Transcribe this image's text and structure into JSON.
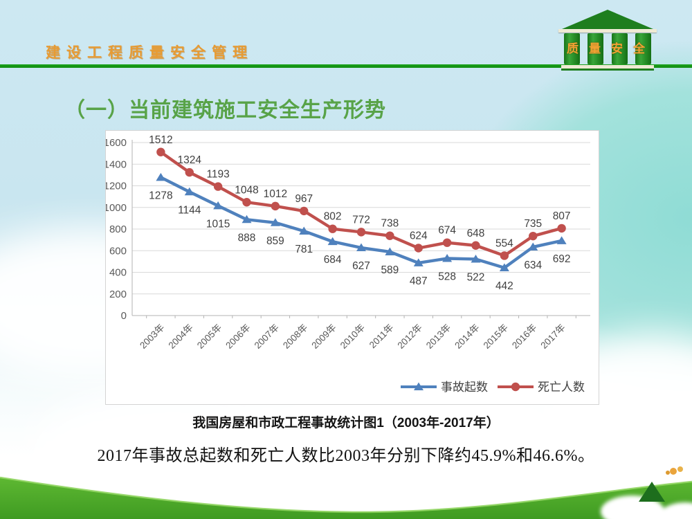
{
  "header": {
    "title": "建设工程质量安全管理",
    "logo_text": "质量安全"
  },
  "slide": {
    "title": "（一）当前建筑施工安全生产形势",
    "caption": "我国房屋和市政工程事故统计图1（2003年-2017年）",
    "summary": "2017年事故总起数和死亡人数比2003年分别下降约45.9%和46.6%。"
  },
  "colors": {
    "header_text": "#e79b33",
    "header_rule_green": "#12a012",
    "title_green": "#58a348",
    "accidents_blue": "#4f81bd",
    "deaths_red": "#c0504d",
    "logo_green": "#1e7e1e",
    "nav_triangle_green": "#1d6e1d"
  },
  "chart_data": {
    "type": "line",
    "title": "",
    "xlabel": "",
    "ylabel": "",
    "categories": [
      "2003年",
      "2004年",
      "2005年",
      "2006年",
      "2007年",
      "2008年",
      "2009年",
      "2010年",
      "2011年",
      "2012年",
      "2013年",
      "2014年",
      "2015年",
      "2016年",
      "2017年"
    ],
    "series": [
      {
        "key": "accidents",
        "name": "事故起数",
        "color": "#4f81bd",
        "marker": "triangle",
        "label_position": "below",
        "values": [
          1278,
          1144,
          1015,
          888,
          859,
          781,
          684,
          627,
          589,
          487,
          528,
          522,
          442,
          634,
          692
        ]
      },
      {
        "key": "deaths",
        "name": "死亡人数",
        "color": "#c0504d",
        "marker": "circle",
        "label_position": "above",
        "values": [
          1512,
          1324,
          1193,
          1048,
          1012,
          967,
          802,
          772,
          738,
          624,
          674,
          648,
          554,
          735,
          807
        ]
      }
    ],
    "ylim": [
      0,
      1600
    ],
    "ytick_step": 200,
    "grid": true,
    "legend_position": "bottom-right"
  }
}
